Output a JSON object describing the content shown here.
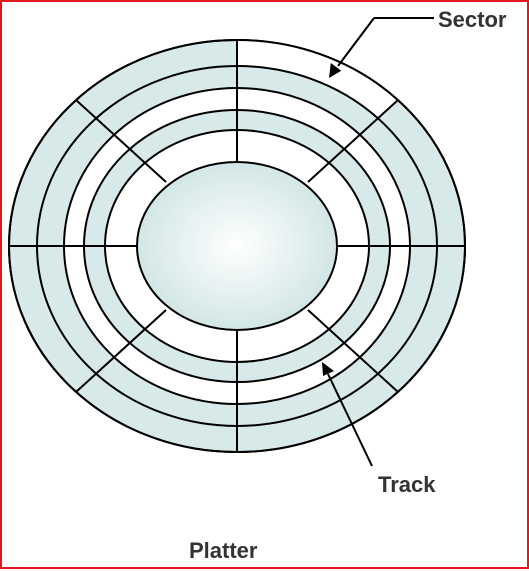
{
  "diagram": {
    "title": "Platter",
    "labels": {
      "sector": "Sector",
      "track": "Track"
    },
    "track_count": 4,
    "sector_count": 8,
    "highlighted_sector_index": 0,
    "colors": {
      "frame_border": "#e0191f",
      "platter_fill": "#d8e9e9",
      "platter_stroke": "#000000",
      "hub_center": "#ffffff",
      "hub_edge": "#d2e6e6",
      "highlight_fill": "#ffffff",
      "label_text": "#333333"
    }
  }
}
